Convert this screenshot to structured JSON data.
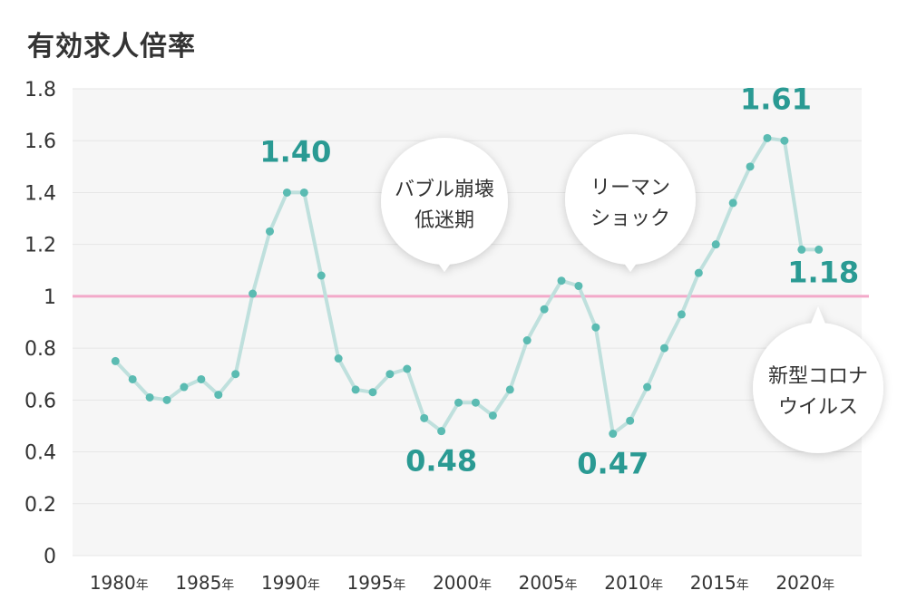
{
  "title": "有効求人倍率",
  "colors": {
    "line": "#bfe0dd",
    "marker": "#5bbbb2",
    "reference": "#f3a9c9",
    "peak_label": "#2a9a93",
    "grid": "#e6e6e6"
  },
  "chart_data": {
    "type": "line",
    "title": "有効求人倍率",
    "xlabel": "",
    "ylabel": "",
    "ylim": [
      0,
      1.8
    ],
    "yticks": [
      "0",
      "0.2",
      "0.4",
      "0.6",
      "0.8",
      "1",
      "1.2",
      "1.4",
      "1.6",
      "1.8"
    ],
    "xticks": [
      {
        "year": "1980",
        "suffix": "年"
      },
      {
        "year": "1985",
        "suffix": "年"
      },
      {
        "year": "1990",
        "suffix": "年"
      },
      {
        "year": "1995",
        "suffix": "年"
      },
      {
        "year": "2000",
        "suffix": "年"
      },
      {
        "year": "2005",
        "suffix": "年"
      },
      {
        "year": "2010",
        "suffix": "年"
      },
      {
        "year": "2015",
        "suffix": "年"
      },
      {
        "year": "2020",
        "suffix": "年"
      }
    ],
    "grid": true,
    "reference_line": 1,
    "series": [
      {
        "x": [
          1980,
          1981,
          1982,
          1983,
          1984,
          1985,
          1986,
          1987,
          1988,
          1989,
          1990,
          1991,
          1992,
          1993,
          1994,
          1995,
          1996,
          1997,
          1998,
          1999,
          2000,
          2001,
          2002,
          2003,
          2004,
          2005,
          2006,
          2007,
          2008,
          2009,
          2010,
          2011,
          2012,
          2013,
          2014,
          2015,
          2016,
          2017,
          2018,
          2019,
          2020,
          2021
        ],
        "y": [
          0.75,
          0.68,
          0.61,
          0.6,
          0.65,
          0.68,
          0.62,
          0.7,
          1.01,
          1.25,
          1.4,
          1.4,
          1.08,
          0.76,
          0.64,
          0.63,
          0.7,
          0.72,
          0.53,
          0.48,
          0.59,
          0.59,
          0.54,
          0.64,
          0.83,
          0.95,
          1.06,
          1.04,
          0.88,
          0.47,
          0.52,
          0.65,
          0.8,
          0.93,
          1.09,
          1.2,
          1.36,
          1.5,
          1.61,
          1.6,
          1.18,
          1.18
        ]
      }
    ],
    "value_labels": [
      {
        "text": "1.40",
        "x": 1990.5,
        "y": 1.4
      },
      {
        "text": "0.48",
        "x": 1999,
        "y": 0.48
      },
      {
        "text": "0.47",
        "x": 2009,
        "y": 0.47
      },
      {
        "text": "1.61",
        "x": 2018.5,
        "y": 1.61
      },
      {
        "text": "1.18",
        "x": 2021,
        "y": 1.18
      }
    ],
    "annotations": [
      {
        "lines": [
          "バブル崩壊",
          "低迷期"
        ],
        "x": 1996.5
      },
      {
        "lines": [
          "リーマン",
          "ショック"
        ],
        "x": 2007
      },
      {
        "lines": [
          "新型コロナ",
          "ウイルス"
        ],
        "x": 2021
      }
    ]
  }
}
